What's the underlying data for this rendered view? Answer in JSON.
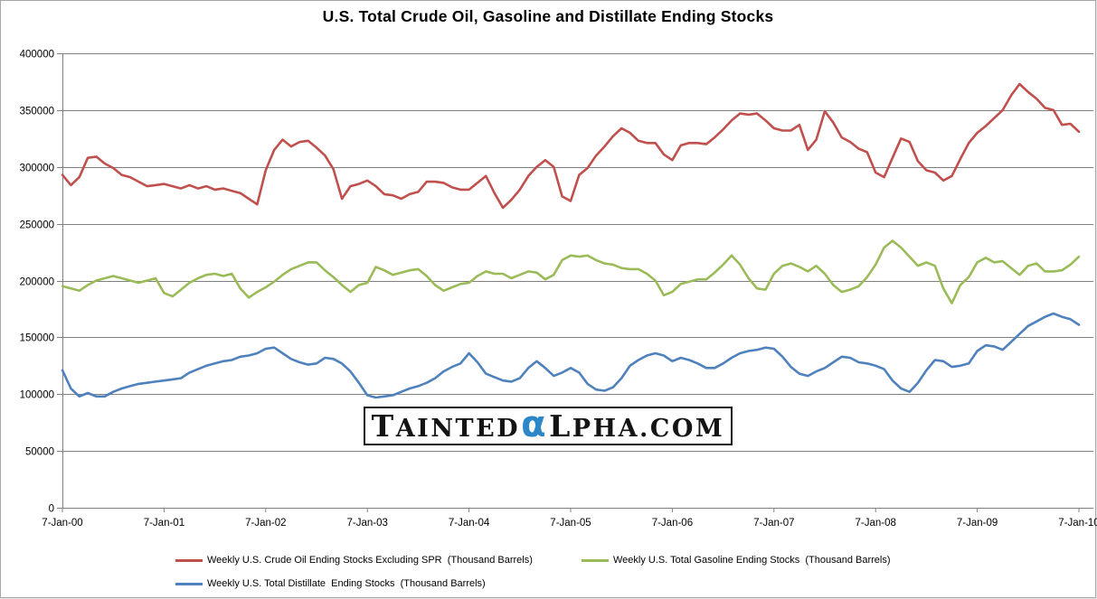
{
  "title": "U.S. Total Crude Oil, Gasoline and Distillate Ending Stocks",
  "watermark": {
    "pre": "TAINTED",
    "alpha": "α",
    "post": "LPHA.COM"
  },
  "colors": {
    "grid": "#808080",
    "axis_text": "#000000",
    "background": "#FFFFFF",
    "border": "#A6A6A6",
    "watermark_text": "#141414",
    "watermark_alpha": "#2B87C8",
    "crude": "#C0504D",
    "gasoline": "#9BBB59",
    "distillate": "#4F81BD"
  },
  "chart_data": {
    "type": "line",
    "title": "U.S. Total Crude Oil, Gasoline and Distillate Ending Stocks",
    "xlabel": "",
    "ylabel": "",
    "x_unit": "date (weekly series, sampled monthly here)",
    "x_labels": [
      "7-Jan-00",
      "7-Jan-01",
      "7-Jan-02",
      "7-Jan-03",
      "7-Jan-04",
      "7-Jan-05",
      "7-Jan-06",
      "7-Jan-07",
      "7-Jan-08",
      "7-Jan-09",
      "7-Jan-10"
    ],
    "ylim": [
      0,
      400000
    ],
    "y_tick_step": 50000,
    "y_tick_labels": [
      "400000",
      "350000",
      "300000",
      "250000",
      "200000",
      "150000",
      "100000",
      "50000",
      "0"
    ],
    "grid": true,
    "legend_position": "bottom",
    "values_unit": "Thousand Barrels",
    "values_scale": 1000,
    "series": [
      {
        "name": "crude-oil",
        "legend_label": "Weekly U.S. Crude Oil Ending Stocks Excluding SPR  (Thousand Barrels)",
        "color": "#C0504D",
        "values": [
          293,
          284,
          291,
          308,
          309,
          303,
          299,
          293,
          291,
          287,
          283,
          284,
          285,
          283,
          281,
          284,
          281,
          283,
          280,
          281,
          279,
          277,
          272,
          267,
          297,
          315,
          324,
          318,
          322,
          323,
          317,
          310,
          298,
          272,
          283,
          285,
          288,
          283,
          276,
          275,
          272,
          276,
          278,
          287,
          287,
          286,
          282,
          280,
          280,
          286,
          292,
          277,
          264,
          271,
          280,
          292,
          300,
          306,
          300,
          274,
          270,
          293,
          299,
          310,
          318,
          327,
          334,
          330,
          323,
          321,
          321,
          311,
          306,
          319,
          321,
          321,
          320,
          326,
          333,
          341,
          347,
          346,
          347,
          341,
          334,
          332,
          332,
          337,
          315,
          324,
          349,
          339,
          326,
          322,
          316,
          313,
          295,
          291,
          308,
          325,
          322,
          305,
          297,
          295,
          288,
          292,
          307,
          321,
          330,
          336,
          343,
          350,
          363,
          373,
          366,
          360,
          352,
          350,
          337,
          338,
          331
        ]
      },
      {
        "name": "gasoline",
        "legend_label": "Weekly U.S. Total Gasoline Ending Stocks  (Thousand Barrels)",
        "color": "#9BBB59",
        "values": [
          195,
          193,
          191,
          196,
          200,
          202,
          204,
          202,
          200,
          198,
          200,
          202,
          189,
          186,
          192,
          198,
          202,
          205,
          206,
          204,
          206,
          193,
          185,
          190,
          194,
          199,
          205,
          210,
          213,
          216,
          216,
          209,
          203,
          196,
          190,
          196,
          198,
          212,
          209,
          205,
          207,
          209,
          210,
          204,
          196,
          191,
          194,
          197,
          198,
          204,
          208,
          206,
          206,
          202,
          205,
          208,
          207,
          201,
          205,
          218,
          222,
          221,
          222,
          218,
          215,
          214,
          211,
          210,
          210,
          206,
          200,
          187,
          190,
          197,
          199,
          201,
          201,
          207,
          214,
          222,
          214,
          202,
          193,
          192,
          206,
          213,
          215,
          212,
          208,
          213,
          206,
          196,
          190,
          192,
          195,
          203,
          214,
          229,
          235,
          229,
          221,
          213,
          216,
          213,
          193,
          180,
          196,
          203,
          216,
          220,
          216,
          217,
          211,
          205,
          213,
          215,
          208,
          208,
          209,
          214,
          221
        ]
      },
      {
        "name": "distillate",
        "legend_label": "Weekly U.S. Total Distillate  Ending Stocks  (Thousand Barrels)",
        "color": "#4F81BD",
        "values": [
          121,
          105,
          98,
          101,
          98,
          98,
          102,
          105,
          107,
          109,
          110,
          111,
          112,
          113,
          114,
          119,
          122,
          125,
          127,
          129,
          130,
          133,
          134,
          136,
          140,
          141,
          136,
          131,
          128,
          126,
          127,
          132,
          131,
          127,
          120,
          110,
          99,
          97,
          98,
          99,
          102,
          105,
          107,
          110,
          114,
          120,
          124,
          127,
          136,
          128,
          118,
          115,
          112,
          111,
          114,
          123,
          129,
          123,
          116,
          119,
          123,
          119,
          109,
          104,
          103,
          106,
          114,
          125,
          130,
          134,
          136,
          134,
          129,
          132,
          130,
          127,
          123,
          123,
          127,
          132,
          136,
          138,
          139,
          141,
          140,
          133,
          124,
          118,
          116,
          120,
          123,
          128,
          133,
          132,
          128,
          127,
          125,
          122,
          112,
          105,
          102,
          110,
          121,
          130,
          129,
          124,
          125,
          127,
          138,
          143,
          142,
          139,
          146,
          153,
          160,
          164,
          168,
          171,
          168,
          166,
          161
        ]
      }
    ]
  }
}
